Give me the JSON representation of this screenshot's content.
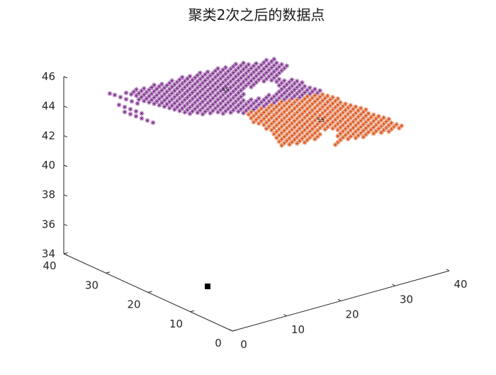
{
  "chart_data": {
    "type": "scatter",
    "title": "聚类2次之后的数据点",
    "xlabel": "",
    "ylabel": "",
    "zlabel": "",
    "view": "3d",
    "grid": false,
    "legend": "none",
    "x_axis": {
      "range": [
        0,
        40
      ],
      "ticks": [
        "0",
        "10",
        "20",
        "30",
        "40"
      ]
    },
    "y_axis": {
      "range": [
        0,
        40
      ],
      "ticks": [
        "0",
        "10",
        "20",
        "30",
        "40"
      ]
    },
    "z_axis": {
      "range": [
        34,
        46
      ],
      "ticks": [
        "34",
        "36",
        "38",
        "40",
        "42",
        "44",
        "46"
      ]
    },
    "marker": "asterisk",
    "series": [
      {
        "color": "#7e2f8e",
        "center_label": "45"
      },
      {
        "color": "#d95319",
        "center_label": "55"
      }
    ],
    "outlier_marker": {
      "color": "#000000",
      "shape": "square"
    }
  }
}
